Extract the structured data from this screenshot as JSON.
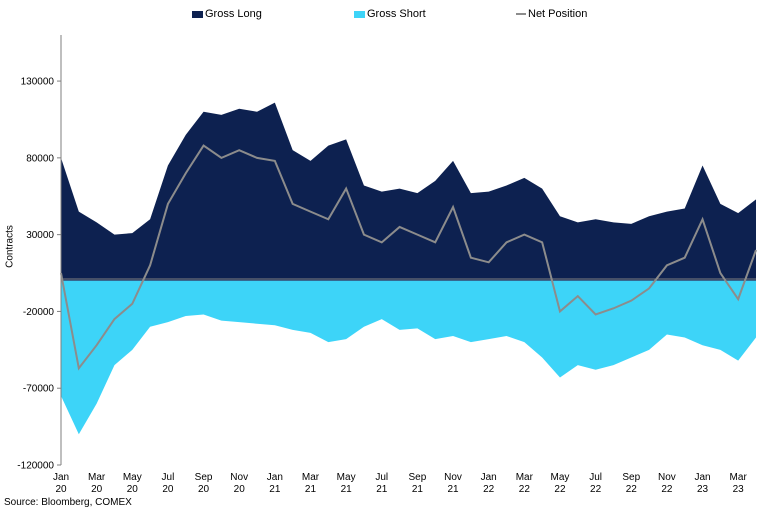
{
  "chart_data": {
    "type": "area",
    "ylabel": "Contracts",
    "ylim": [
      -120000,
      160000
    ],
    "yticks": [
      130000,
      80000,
      30000,
      -20000,
      -70000,
      -120000
    ],
    "ytick_labels": [
      "130000",
      "80000",
      "30000",
      "-20000",
      "-70000",
      "-120000"
    ],
    "xticks": [
      {
        "label": [
          "Jan",
          "20"
        ],
        "x": "2020-01"
      },
      {
        "label": [
          "Mar",
          "20"
        ],
        "x": "2020-03"
      },
      {
        "label": [
          "May",
          "20"
        ],
        "x": "2020-05"
      },
      {
        "label": [
          "Jul",
          "20"
        ],
        "x": "2020-07"
      },
      {
        "label": [
          "Sep",
          "20"
        ],
        "x": "2020-09"
      },
      {
        "label": [
          "Nov",
          "20"
        ],
        "x": "2020-11"
      },
      {
        "label": [
          "Jan",
          "21"
        ],
        "x": "2021-01"
      },
      {
        "label": [
          "Mar",
          "21"
        ],
        "x": "2021-03"
      },
      {
        "label": [
          "May",
          "21"
        ],
        "x": "2021-05"
      },
      {
        "label": [
          "Jul",
          "21"
        ],
        "x": "2021-07"
      },
      {
        "label": [
          "Sep",
          "21"
        ],
        "x": "2021-09"
      },
      {
        "label": [
          "Nov",
          "21"
        ],
        "x": "2021-11"
      },
      {
        "label": [
          "Jan",
          "22"
        ],
        "x": "2022-01"
      },
      {
        "label": [
          "Mar",
          "22"
        ],
        "x": "2022-03"
      },
      {
        "label": [
          "May",
          "22"
        ],
        "x": "2022-05"
      },
      {
        "label": [
          "Jul",
          "22"
        ],
        "x": "2022-07"
      },
      {
        "label": [
          "Sep",
          "22"
        ],
        "x": "2022-09"
      },
      {
        "label": [
          "Nov",
          "22"
        ],
        "x": "2022-11"
      },
      {
        "label": [
          "Jan",
          "23"
        ],
        "x": "2023-01"
      },
      {
        "label": [
          "Mar",
          "23"
        ],
        "x": "2023-03"
      }
    ],
    "grid": false,
    "legend_position": "top",
    "x_range": [
      "2020-01",
      "2023-04"
    ],
    "x": [
      "2020-01",
      "2020-02",
      "2020-03",
      "2020-04",
      "2020-05",
      "2020-06",
      "2020-07",
      "2020-08",
      "2020-09",
      "2020-10",
      "2020-11",
      "2020-12",
      "2021-01",
      "2021-02",
      "2021-03",
      "2021-04",
      "2021-05",
      "2021-06",
      "2021-07",
      "2021-08",
      "2021-09",
      "2021-10",
      "2021-11",
      "2021-12",
      "2022-01",
      "2022-02",
      "2022-03",
      "2022-04",
      "2022-05",
      "2022-06",
      "2022-07",
      "2022-08",
      "2022-09",
      "2022-10",
      "2022-11",
      "2022-12",
      "2023-01",
      "2023-02",
      "2023-03",
      "2023-04"
    ],
    "series": [
      {
        "name": "Gross Long",
        "kind": "area",
        "color": "#0d2150",
        "values": [
          80000,
          45000,
          38000,
          30000,
          31000,
          40000,
          75000,
          95000,
          110000,
          108000,
          112000,
          110000,
          116000,
          85000,
          78000,
          88000,
          92000,
          62000,
          58000,
          60000,
          57000,
          65000,
          78000,
          57000,
          58000,
          62000,
          67000,
          60000,
          42000,
          38000,
          40000,
          38000,
          37000,
          42000,
          45000,
          47000,
          75000,
          50000,
          44000,
          53000
        ]
      },
      {
        "name": "Gross Short",
        "kind": "area",
        "color": "#3dd4f8",
        "values": [
          -75000,
          -100000,
          -80000,
          -55000,
          -45000,
          -30000,
          -27000,
          -23000,
          -22000,
          -26000,
          -27000,
          -28000,
          -29000,
          -32000,
          -34000,
          -40000,
          -38000,
          -30000,
          -25000,
          -32000,
          -31000,
          -38000,
          -36000,
          -40000,
          -38000,
          -36000,
          -40000,
          -50000,
          -63000,
          -55000,
          -58000,
          -55000,
          -50000,
          -45000,
          -35000,
          -37000,
          -42000,
          -45000,
          -52000,
          -37000
        ]
      },
      {
        "name": "Net Position",
        "kind": "line",
        "color": "#8c8c8c",
        "values": [
          5000,
          -57000,
          -42000,
          -25000,
          -15000,
          10000,
          50000,
          70000,
          88000,
          80000,
          85000,
          80000,
          78000,
          50000,
          45000,
          40000,
          60000,
          30000,
          25000,
          35000,
          30000,
          25000,
          48000,
          15000,
          12000,
          25000,
          30000,
          25000,
          -20000,
          -10000,
          -22000,
          -18000,
          -13000,
          -5000,
          10000,
          15000,
          40000,
          5000,
          -12000,
          20000
        ]
      }
    ]
  },
  "legend": {
    "items": [
      {
        "label": "Gross Long",
        "color": "#0d2150"
      },
      {
        "label": "Gross Short",
        "color": "#3dd4f8"
      },
      {
        "label": "Net Position",
        "color": "#8c8c8c"
      }
    ]
  },
  "source": "Source: Bloomberg, COMEX"
}
